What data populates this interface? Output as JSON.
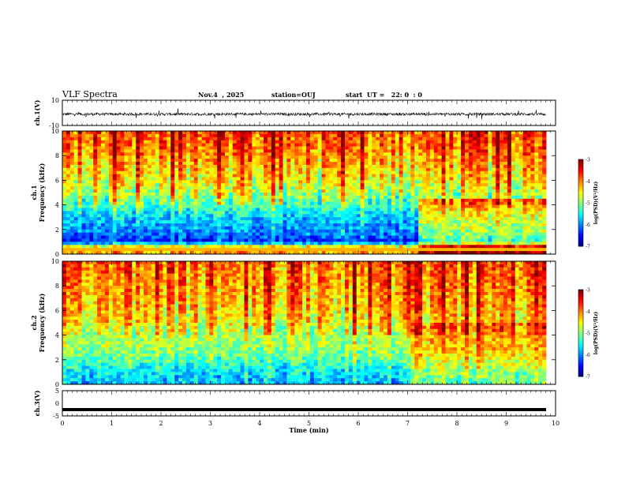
{
  "header": {
    "title": "VLF Spectra",
    "date": "Nov.4  , 2025",
    "station": "station=OUJ",
    "start": "start  UT =   22: 0  : 0"
  },
  "chart_data": [
    {
      "type": "line",
      "title": "",
      "xlabel": "",
      "ylabel": "ch.1(V)",
      "xlim": [
        0,
        10
      ],
      "ylim": [
        -10,
        10
      ],
      "y_ticks": [
        "10",
        "-10"
      ],
      "description_values": {
        "baseline": -1,
        "noise_amplitude": 1.5
      },
      "color": "#000000"
    },
    {
      "type": "heatmap",
      "ylabel": "ch.1\nFrequency  (kHz)",
      "xlim": [
        0,
        9.83
      ],
      "ylim": [
        0,
        10
      ],
      "y_ticks": [
        "0",
        "2",
        "4",
        "6",
        "8",
        "10"
      ],
      "colorbar": {
        "label": "log(PSD)(V²/Hz)",
        "min": -7,
        "max": -3,
        "ticks": [
          "-3",
          "-4",
          "-5",
          "-6",
          "-7"
        ]
      },
      "band_profile": [
        {
          "freq_khz": 0.0,
          "log_psd": -4.3
        },
        {
          "freq_khz": 0.5,
          "log_psd": -4.0
        },
        {
          "freq_khz": 1.0,
          "log_psd": -6.4
        },
        {
          "freq_khz": 1.5,
          "log_psd": -6.1
        },
        {
          "freq_khz": 2.0,
          "log_psd": -5.9
        },
        {
          "freq_khz": 3.0,
          "log_psd": -5.7
        },
        {
          "freq_khz": 4.0,
          "log_psd": -5.2
        },
        {
          "freq_khz": 5.0,
          "log_psd": -4.8
        },
        {
          "freq_khz": 6.0,
          "log_psd": -4.5
        },
        {
          "freq_khz": 7.0,
          "log_psd": -4.3
        },
        {
          "freq_khz": 8.0,
          "log_psd": -4.1
        },
        {
          "freq_khz": 9.0,
          "log_psd": -3.9
        },
        {
          "freq_khz": 10.0,
          "log_psd": -3.8
        }
      ]
    },
    {
      "type": "heatmap",
      "ylabel": "ch.2\nFrequency  (kHz)",
      "xlim": [
        0,
        9.83
      ],
      "ylim": [
        0,
        10
      ],
      "y_ticks": [
        "0",
        "2",
        "4",
        "6",
        "8",
        "10"
      ],
      "colorbar": {
        "label": "log(PSD)(V²/Hz)",
        "min": -7,
        "max": -3,
        "ticks": [
          "-3",
          "-4",
          "-5",
          "-6",
          "-7"
        ]
      },
      "band_profile": [
        {
          "freq_khz": 0.0,
          "log_psd": -5.8
        },
        {
          "freq_khz": 1.0,
          "log_psd": -5.6
        },
        {
          "freq_khz": 2.0,
          "log_psd": -5.2
        },
        {
          "freq_khz": 3.0,
          "log_psd": -4.9
        },
        {
          "freq_khz": 4.0,
          "log_psd": -4.8
        },
        {
          "freq_khz": 5.0,
          "log_psd": -4.5
        },
        {
          "freq_khz": 6.0,
          "log_psd": -4.3
        },
        {
          "freq_khz": 7.0,
          "log_psd": -4.2
        },
        {
          "freq_khz": 8.0,
          "log_psd": -4.1
        },
        {
          "freq_khz": 9.0,
          "log_psd": -4.0
        },
        {
          "freq_khz": 10.0,
          "log_psd": -3.9
        }
      ]
    },
    {
      "type": "line",
      "ylabel": "ch.3(V)",
      "xlabel": "Time  (min)",
      "xlim": [
        0,
        10
      ],
      "ylim": [
        -5,
        5
      ],
      "y_ticks": [
        "5",
        "0",
        "-5"
      ],
      "x_ticks": [
        "0",
        "1",
        "2",
        "3",
        "4",
        "5",
        "6",
        "7",
        "8",
        "9",
        "10"
      ],
      "constant_value": -2.5,
      "color": "#000000"
    }
  ]
}
